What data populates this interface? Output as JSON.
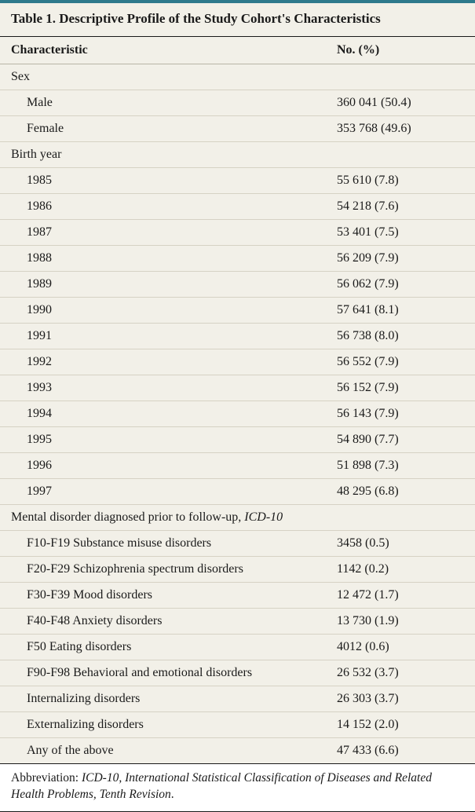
{
  "colors": {
    "accent_top": "#2e7a8c",
    "bg": "#f2f0e8",
    "row_border": "#d6d2c4",
    "header_border": "#b8b4a6",
    "rule": "#1a1a1a",
    "text": "#1a1a1a"
  },
  "table": {
    "title": "Table 1. Descriptive Profile of the Study Cohort's Characteristics",
    "columns": [
      "Characteristic",
      "No. (%)"
    ],
    "sections": [
      {
        "heading": "Sex",
        "rows": [
          {
            "label": "Male",
            "value": "360 041 (50.4)"
          },
          {
            "label": "Female",
            "value": "353 768 (49.6)"
          }
        ]
      },
      {
        "heading": "Birth year",
        "rows": [
          {
            "label": "1985",
            "value": "55 610 (7.8)"
          },
          {
            "label": "1986",
            "value": "54 218 (7.6)"
          },
          {
            "label": "1987",
            "value": "53 401 (7.5)"
          },
          {
            "label": "1988",
            "value": "56 209 (7.9)"
          },
          {
            "label": "1989",
            "value": "56 062 (7.9)"
          },
          {
            "label": "1990",
            "value": "57 641 (8.1)"
          },
          {
            "label": "1991",
            "value": "56 738 (8.0)"
          },
          {
            "label": "1992",
            "value": "56 552 (7.9)"
          },
          {
            "label": "1993",
            "value": "56 152 (7.9)"
          },
          {
            "label": "1994",
            "value": "56 143 (7.9)"
          },
          {
            "label": "1995",
            "value": "54 890 (7.7)"
          },
          {
            "label": "1996",
            "value": "51 898 (7.3)"
          },
          {
            "label": "1997",
            "value": "48 295 (6.8)"
          }
        ]
      },
      {
        "heading": "Mental disorder diagnosed prior to follow-up, ",
        "heading_ital": "ICD-10",
        "rows": [
          {
            "label": "F10-F19 Substance misuse disorders",
            "value": "3458 (0.5)"
          },
          {
            "label": "F20-F29 Schizophrenia spectrum disorders",
            "value": "1142 (0.2)"
          },
          {
            "label": "F30-F39 Mood disorders",
            "value": "12 472 (1.7)"
          },
          {
            "label": "F40-F48 Anxiety disorders",
            "value": "13 730 (1.9)"
          },
          {
            "label": "F50 Eating disorders",
            "value": "4012 (0.6)"
          },
          {
            "label": "F90-F98 Behavioral and emotional disorders",
            "value": "26 532 (3.7)"
          },
          {
            "label": "Internalizing disorders",
            "value": "26 303 (3.7)"
          },
          {
            "label": "Externalizing disorders",
            "value": "14 152 (2.0)"
          },
          {
            "label": "Any of the above",
            "value": "47 433 (6.6)"
          }
        ]
      }
    ],
    "footnote_prefix": "Abbreviation: ",
    "footnote_ital": "ICD-10, International Statistical Classification of Diseases and Related Health Problems, Tenth Revision",
    "footnote_suffix": "."
  }
}
